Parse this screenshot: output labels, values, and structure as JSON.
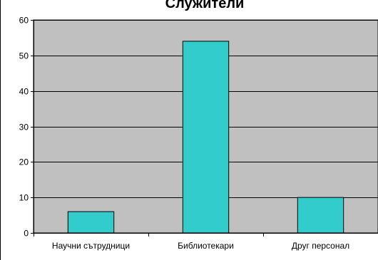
{
  "chart_data": {
    "type": "bar",
    "title": "Служители",
    "categories": [
      "Научни сътрудници",
      "Библиотекари",
      "Друг персонал"
    ],
    "series": [
      {
        "values": [
          6,
          54,
          10
        ]
      }
    ],
    "ylim": [
      0,
      60
    ],
    "yticks": [
      0,
      10,
      20,
      30,
      40,
      50,
      60
    ],
    "grid": true,
    "legend": "none",
    "colors": {
      "bar_fill": "#33CCCC",
      "bar_stroke": "#000000",
      "plot_background": "#C0C0C0",
      "grid": "#000000",
      "axis": "#000000"
    }
  }
}
